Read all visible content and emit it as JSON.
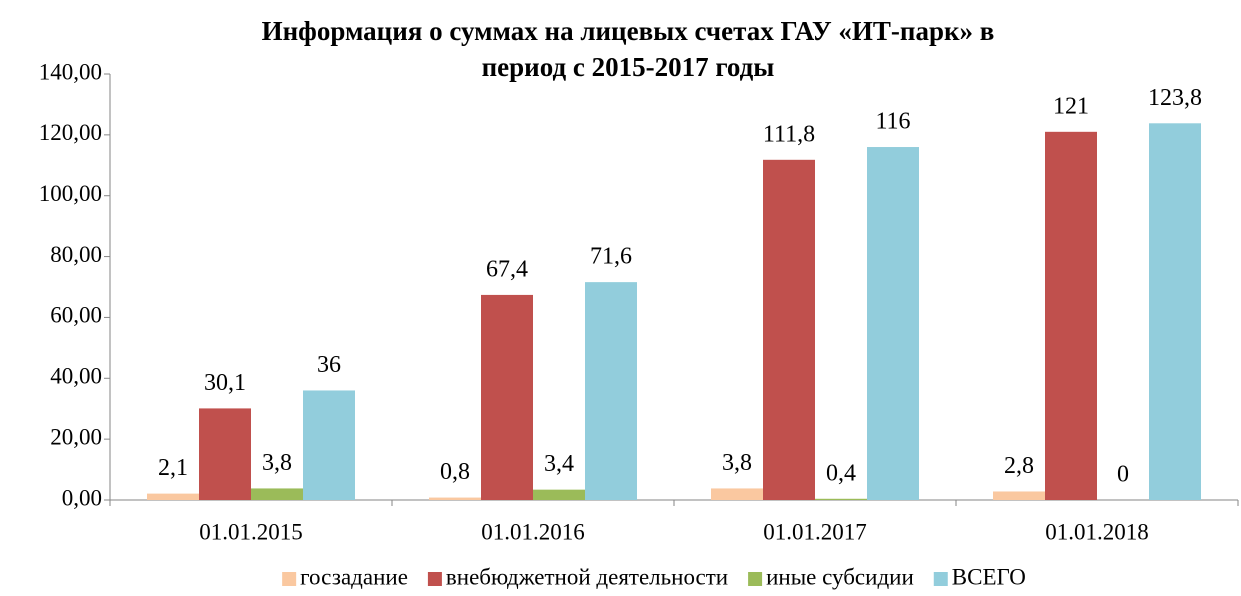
{
  "chart_data": {
    "type": "bar",
    "title": [
      "Информация о суммах на лицевых счетах ГАУ «ИТ-парк» в",
      "период с 2015-2017 годы"
    ],
    "categories": [
      "01.01.2015",
      "01.01.2016",
      "01.01.2017",
      "01.01.2018"
    ],
    "series": [
      {
        "name": "госзадание",
        "color": "#fac8a0",
        "values": [
          2.1,
          0.8,
          3.8,
          2.8
        ],
        "value_labels": [
          "2,1",
          "0,8",
          "3,8",
          "2,8"
        ]
      },
      {
        "name": "внебюджетной деятельности",
        "color": "#c0504d",
        "values": [
          30.1,
          67.4,
          111.8,
          121
        ],
        "value_labels": [
          "30,1",
          "67,4",
          "111,8",
          "121"
        ]
      },
      {
        "name": "иные субсидии",
        "color": "#9bbb59",
        "values": [
          3.8,
          3.4,
          0.4,
          0
        ],
        "value_labels": [
          "3,8",
          "3,4",
          "0,4",
          "0"
        ]
      },
      {
        "name": "ВСЕГО",
        "color": "#92cddc",
        "values": [
          36,
          71.6,
          116,
          123.8
        ],
        "value_labels": [
          "36",
          "71,6",
          "116",
          "123,8"
        ]
      }
    ],
    "ylim": [
      0,
      140
    ],
    "yticks": [
      {
        "value": 0,
        "label": "0,00"
      },
      {
        "value": 20,
        "label": "20,00"
      },
      {
        "value": 40,
        "label": "40,00"
      },
      {
        "value": 60,
        "label": "60,00"
      },
      {
        "value": 80,
        "label": "80,00"
      },
      {
        "value": 100,
        "label": "100,00"
      },
      {
        "value": 120,
        "label": "120,00"
      },
      {
        "value": 140,
        "label": "140,00"
      }
    ],
    "legend": "bottom"
  }
}
